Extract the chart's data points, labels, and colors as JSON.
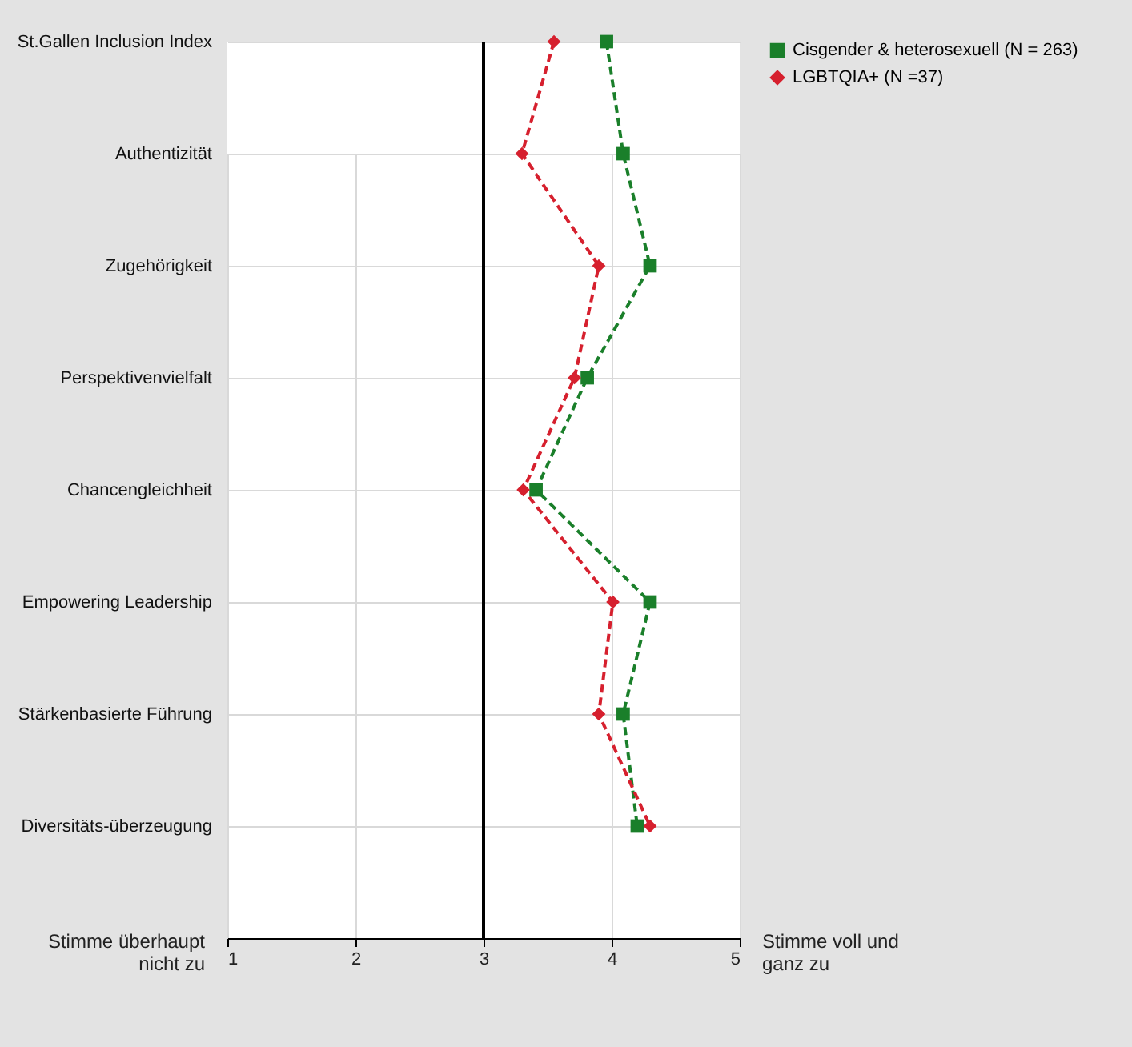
{
  "chart_data": {
    "type": "line",
    "categories": [
      "St.Gallen Inclusion Index",
      "Authentizität",
      "Zugehörigkeit",
      "Perspektivenvielfalt",
      "Chancengleichheit",
      "Empowering Leadership",
      "Stärkenbasierte Führung",
      "Diversitäts-überzeugung"
    ],
    "orientation": "horizontal",
    "series": [
      {
        "name": "Cisgender & heterosexuell (N = 263)",
        "color": "#1a7f2a",
        "marker": "square",
        "values": [
          3.96,
          4.09,
          4.3,
          3.81,
          3.41,
          4.3,
          4.09,
          4.2
        ]
      },
      {
        "name": "LGBTQIA+ (N =37)",
        "color": "#d6202e",
        "marker": "diamond",
        "values": [
          3.55,
          3.3,
          3.9,
          3.71,
          3.31,
          4.01,
          3.9,
          4.3
        ]
      }
    ],
    "xlim": [
      1,
      5
    ],
    "xticks": [
      1,
      2,
      3,
      4,
      5
    ],
    "ref_lines": [
      {
        "axis": "x",
        "value": 3,
        "color": "#000000"
      }
    ],
    "line_style": "dashed",
    "grid": true,
    "legend": "top right",
    "annotations": [
      "Stimme überhaupt nicht zu",
      "Stimme voll und ganz zu"
    ]
  }
}
